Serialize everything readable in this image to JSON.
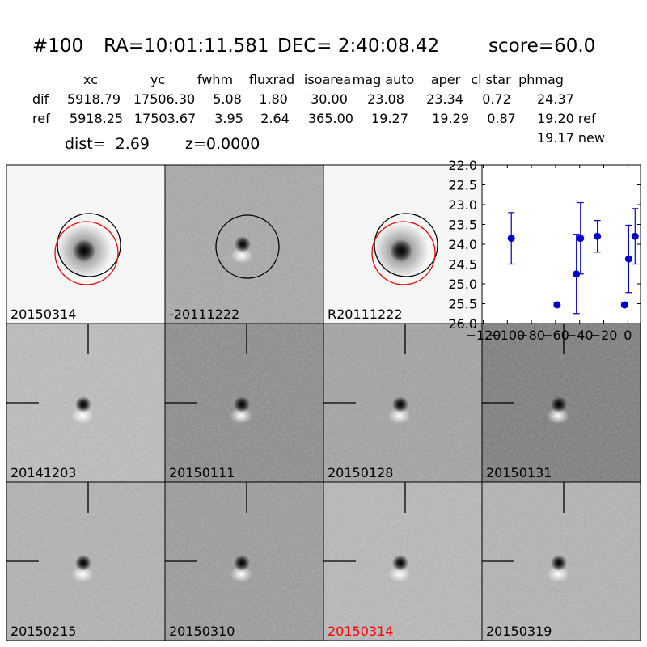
{
  "header": {
    "id": "#100",
    "ra": "RA=10:01:11.581",
    "dec": "DEC= 2:40:08.42",
    "score": "score=60.0"
  },
  "table": {
    "columns": [
      "xc",
      "yc",
      "fwhm",
      "fluxrad",
      "isoarea",
      "mag auto",
      "aper",
      "cl star",
      "phmag"
    ],
    "rows": [
      {
        "label": "dif",
        "cells": [
          "5918.79",
          "17506.30",
          "5.08",
          "1.80",
          "30.00",
          "23.08",
          "23.34",
          "0.72",
          "24.37"
        ]
      },
      {
        "label": "ref",
        "cells": [
          "5918.25",
          "17503.67",
          "3.95",
          "2.64",
          "365.00",
          "19.27",
          "19.29",
          "0.87",
          "19.20 ref"
        ]
      }
    ],
    "extra": "19.17 new"
  },
  "dist": "dist=  2.69",
  "z": "z=0.0000",
  "stamps": [
    {
      "label": "20150314",
      "color": "#000000"
    },
    {
      "label": "-20111222",
      "color": "#000000"
    },
    {
      "label": "R20111222",
      "color": "#000000"
    },
    {
      "label": "20141203",
      "color": "#000000"
    },
    {
      "label": "20150111",
      "color": "#000000"
    },
    {
      "label": "20150128",
      "color": "#000000"
    },
    {
      "label": "20150131",
      "color": "#000000"
    },
    {
      "label": "20150215",
      "color": "#000000"
    },
    {
      "label": "20150310",
      "color": "#000000"
    },
    {
      "label": "20150314",
      "color": "#ff0000"
    },
    {
      "label": "20150319",
      "color": "#000000"
    }
  ],
  "chart_data": {
    "type": "scatter",
    "color": "#0000cc",
    "x": [
      -96.7,
      -58.7,
      -42.7,
      -39.3,
      -25.3,
      -2.7,
      0.7,
      6
    ],
    "values": [
      23.85,
      25.53,
      24.75,
      23.85,
      23.8,
      25.53,
      24.37,
      23.8
    ],
    "errors": [
      0.65,
      0.05,
      1.0,
      0.9,
      0.4,
      0.05,
      0.85,
      0.7
    ],
    "xlim": [
      -121,
      10.5
    ],
    "ylim": [
      26,
      22
    ],
    "y_inverted": true,
    "xticks": [
      {
        "value": -120,
        "label": "−120"
      },
      {
        "value": -100,
        "label": "−100"
      },
      {
        "value": -80,
        "label": "−80"
      },
      {
        "value": -60,
        "label": "−60"
      },
      {
        "value": -40,
        "label": "−40"
      },
      {
        "value": -20,
        "label": "−20"
      },
      0
    ],
    "yticks": [
      {
        "value": 22,
        "label": "22.0"
      },
      22.5,
      {
        "value": 23,
        "label": "23.0"
      },
      23.5,
      {
        "value": 24,
        "label": "24.0"
      },
      24.5,
      {
        "value": 25,
        "label": "25.0"
      },
      25.5,
      {
        "value": 26,
        "label": "26.0"
      }
    ]
  }
}
